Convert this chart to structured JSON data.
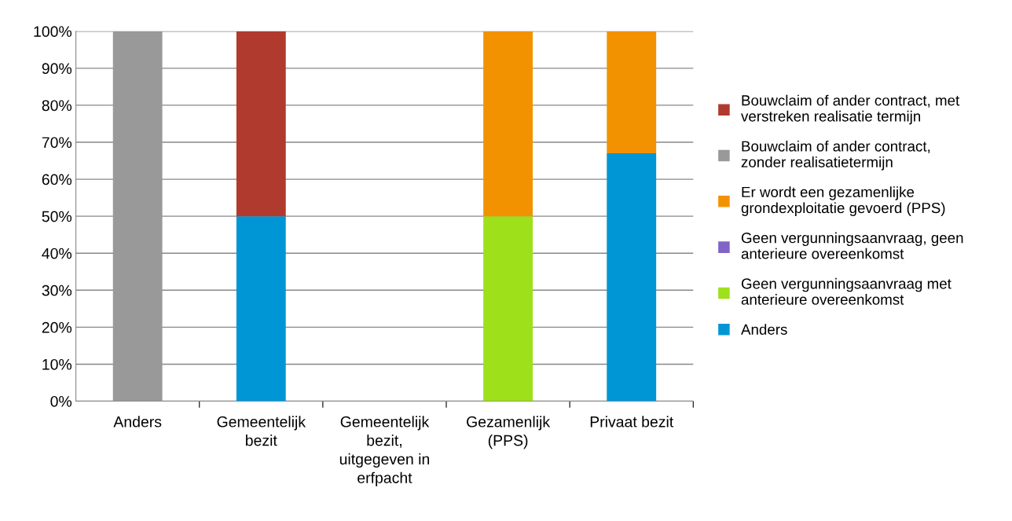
{
  "chart_data": {
    "type": "bar",
    "stacked": true,
    "categories": [
      "Anders",
      "Gemeentelijk bezit",
      "Gemeentelijk bezit, uitgegeven in erfpacht",
      "Gezamenlijk (PPS)",
      "Privaat bezit"
    ],
    "series": [
      {
        "name": "Anders",
        "color": "#0096d6",
        "values": [
          0,
          50,
          0,
          0,
          67
        ]
      },
      {
        "name": "Geen vergunningsaanvraag met anterieure overeenkomst",
        "color": "#9ee01a",
        "values": [
          0,
          0,
          0,
          50,
          0
        ]
      },
      {
        "name": "Geen vergunningsaanvraag, geen anterieure overeenkomst",
        "color": "#8064c8",
        "values": [
          0,
          0,
          0,
          0,
          0
        ]
      },
      {
        "name": "Er wordt een gezamenlijke grondexploitatie gevoerd (PPS)",
        "color": "#f39200",
        "values": [
          0,
          0,
          0,
          50,
          33
        ]
      },
      {
        "name": "Bouwclaim of ander contract, zonder realisatietermijn",
        "color": "#999999",
        "values": [
          100,
          0,
          0,
          0,
          0
        ]
      },
      {
        "name": "Bouwclaim of ander contract, met verstreken realisatie termijn",
        "color": "#b03a2e",
        "values": [
          0,
          50,
          0,
          0,
          0
        ]
      }
    ],
    "ylim": [
      0,
      100
    ],
    "yticks": [
      {
        "value": 0,
        "label": "0%"
      },
      {
        "value": 10,
        "label": "10%"
      },
      {
        "value": 20,
        "label": "20%"
      },
      {
        "value": 30,
        "label": "30%"
      },
      {
        "value": 40,
        "label": "40%"
      },
      {
        "value": 50,
        "label": "50%"
      },
      {
        "value": 60,
        "label": "60%"
      },
      {
        "value": 70,
        "label": "70%"
      },
      {
        "value": 80,
        "label": "80%"
      },
      {
        "value": 90,
        "label": "90%"
      },
      {
        "value": 100,
        "label": "100%"
      }
    ],
    "grid": "y",
    "legend": "right"
  }
}
